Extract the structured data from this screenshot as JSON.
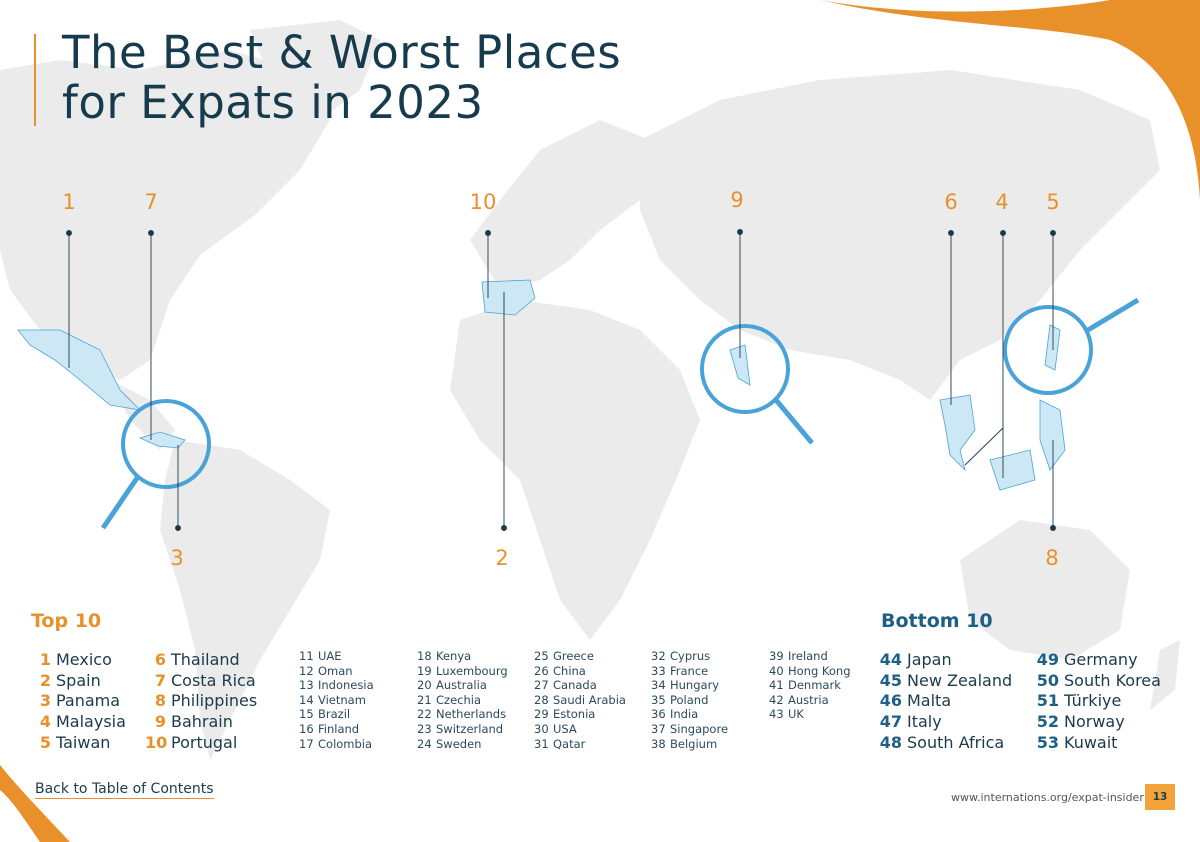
{
  "title": {
    "line1": "The Best & Worst Places",
    "line2": "for Expats in 2023"
  },
  "colors": {
    "accent": "#e8902a",
    "highlight": "#4aa3d8",
    "map": "#ebebec",
    "land_highlight": "#cde8f5"
  },
  "map_pins": [
    {
      "label": "1"
    },
    {
      "label": "7"
    },
    {
      "label": "3"
    },
    {
      "label": "10"
    },
    {
      "label": "2"
    },
    {
      "label": "9"
    },
    {
      "label": "6"
    },
    {
      "label": "4"
    },
    {
      "label": "5"
    },
    {
      "label": "8"
    }
  ],
  "top10": {
    "heading": "Top 10",
    "col1": [
      {
        "rank": "1",
        "country": "Mexico"
      },
      {
        "rank": "2",
        "country": "Spain"
      },
      {
        "rank": "3",
        "country": "Panama"
      },
      {
        "rank": "4",
        "country": "Malaysia"
      },
      {
        "rank": "5",
        "country": "Taiwan"
      }
    ],
    "col2": [
      {
        "rank": "6",
        "country": "Thailand"
      },
      {
        "rank": "7",
        "country": "Costa Rica"
      },
      {
        "rank": "8",
        "country": "Philippines"
      },
      {
        "rank": "9",
        "country": "Bahrain"
      },
      {
        "rank": "10",
        "country": "Portugal"
      }
    ]
  },
  "middle": [
    [
      {
        "rank": "11",
        "country": "UAE"
      },
      {
        "rank": "12",
        "country": "Oman"
      },
      {
        "rank": "13",
        "country": "Indonesia"
      },
      {
        "rank": "14",
        "country": "Vietnam"
      },
      {
        "rank": "15",
        "country": "Brazil"
      },
      {
        "rank": "16",
        "country": "Finland"
      },
      {
        "rank": "17",
        "country": "Colombia"
      }
    ],
    [
      {
        "rank": "18",
        "country": "Kenya"
      },
      {
        "rank": "19",
        "country": "Luxembourg"
      },
      {
        "rank": "20",
        "country": "Australia"
      },
      {
        "rank": "21",
        "country": "Czechia"
      },
      {
        "rank": "22",
        "country": "Netherlands"
      },
      {
        "rank": "23",
        "country": "Switzerland"
      },
      {
        "rank": "24",
        "country": "Sweden"
      }
    ],
    [
      {
        "rank": "25",
        "country": "Greece"
      },
      {
        "rank": "26",
        "country": "China"
      },
      {
        "rank": "27",
        "country": "Canada"
      },
      {
        "rank": "28",
        "country": "Saudi Arabia"
      },
      {
        "rank": "29",
        "country": "Estonia"
      },
      {
        "rank": "30",
        "country": "USA"
      },
      {
        "rank": "31",
        "country": "Qatar"
      }
    ],
    [
      {
        "rank": "32",
        "country": "Cyprus"
      },
      {
        "rank": "33",
        "country": "France"
      },
      {
        "rank": "34",
        "country": "Hungary"
      },
      {
        "rank": "35",
        "country": "Poland"
      },
      {
        "rank": "36",
        "country": "India"
      },
      {
        "rank": "37",
        "country": "Singapore"
      },
      {
        "rank": "38",
        "country": "Belgium"
      }
    ],
    [
      {
        "rank": "39",
        "country": "Ireland"
      },
      {
        "rank": "40",
        "country": "Hong Kong"
      },
      {
        "rank": "41",
        "country": "Denmark"
      },
      {
        "rank": "42",
        "country": "Austria"
      },
      {
        "rank": "43",
        "country": "UK"
      }
    ]
  ],
  "bottom10": {
    "heading": "Bottom 10",
    "col1": [
      {
        "rank": "44",
        "country": "Japan"
      },
      {
        "rank": "45",
        "country": "New Zealand"
      },
      {
        "rank": "46",
        "country": "Malta"
      },
      {
        "rank": "47",
        "country": "Italy"
      },
      {
        "rank": "48",
        "country": "South Africa"
      }
    ],
    "col2": [
      {
        "rank": "49",
        "country": "Germany"
      },
      {
        "rank": "50",
        "country": "South Korea"
      },
      {
        "rank": "51",
        "country": "Türkiye"
      },
      {
        "rank": "52",
        "country": "Norway"
      },
      {
        "rank": "53",
        "country": "Kuwait"
      }
    ]
  },
  "footer": {
    "back_link": "Back to Table of Contents",
    "url": "www.internations.org/expat-insider",
    "page_number": "13"
  }
}
